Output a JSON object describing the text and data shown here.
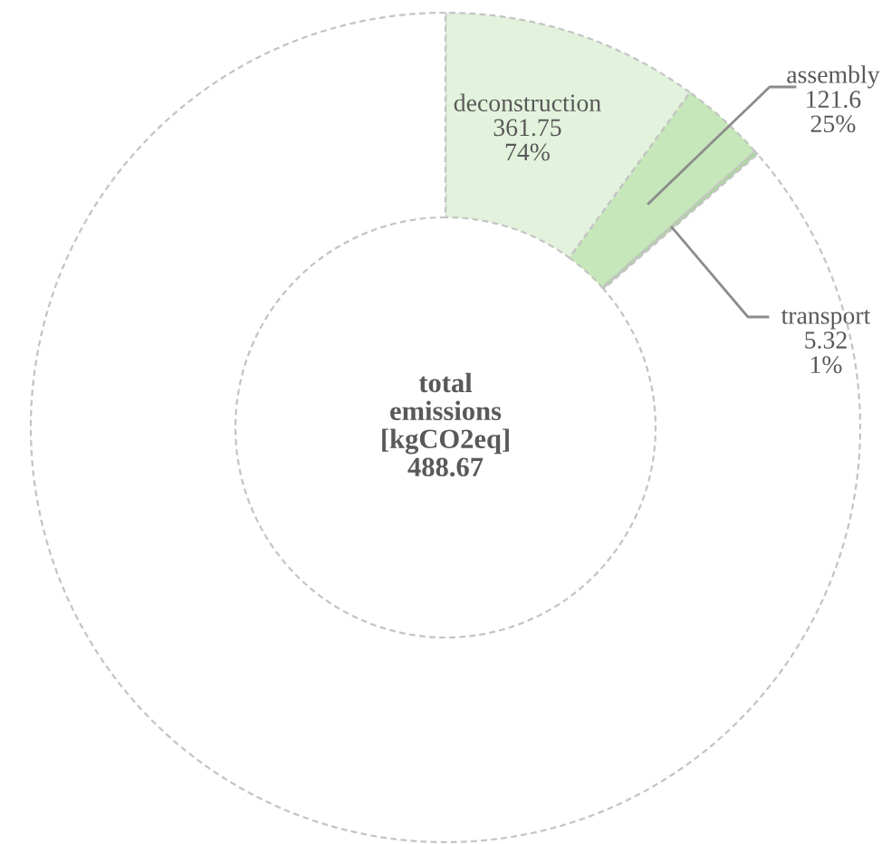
{
  "chart_data": {
    "type": "donut",
    "categories": [
      "deconstruction",
      "assembly",
      "transport",
      null
    ],
    "values": [
      361.75,
      121.6,
      5.32,
      3116
    ],
    "colors": [
      "#e2f2dc",
      "#c6e7b9",
      "#a9d99a",
      "#ffffff"
    ],
    "value_labels": [
      "361.75\n74%",
      "121.6\n25%",
      "5.32\n1%",
      null
    ],
    "annotations": [
      "total\nemissions\n[kgCO2eq]\n488.67"
    ]
  }
}
